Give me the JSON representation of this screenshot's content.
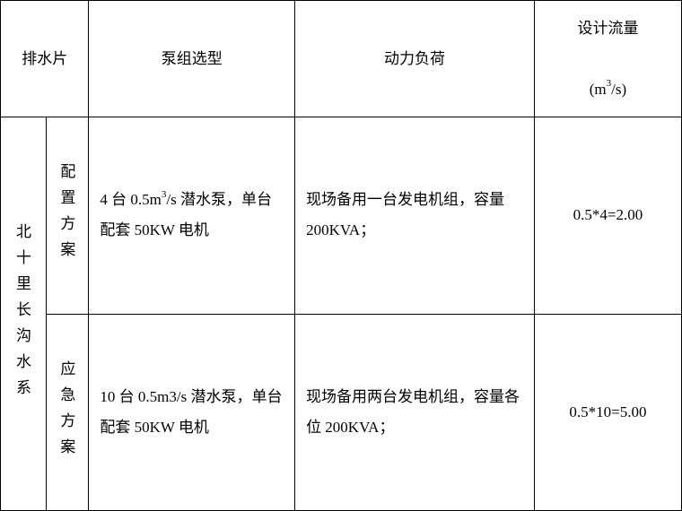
{
  "header": {
    "drainage_label": "排水片",
    "pump_label": "泵组选型",
    "power_label": "动力负荷",
    "flow_label_line1": "设计流量",
    "flow_label_unit_pre": "(m",
    "flow_label_unit_sup": "3",
    "flow_label_unit_post": "/s)"
  },
  "rows": {
    "drainage_system": "北十里长沟水系",
    "scheme1": {
      "label": "配置方案",
      "pump_pre": "4 台 0.5m",
      "pump_sup": "3",
      "pump_post": "/s 潜水泵，单台配套 50KW 电机",
      "power": "现场备用一台发电机组，容量 200KVA；",
      "flow": "0.5*4=2.00"
    },
    "scheme2": {
      "label": "应急方案",
      "pump": "10 台 0.5m3/s 潜水泵，单台配套 50KW 电机",
      "power": "现场备用两台发电机组，容量各位 200KVA；",
      "flow": "0.5*10=5.00"
    }
  },
  "style": {
    "border_color": "#000000",
    "background_color": "#ffffff",
    "text_color": "#000000",
    "font_family": "SimSun",
    "base_fontsize": 17
  }
}
